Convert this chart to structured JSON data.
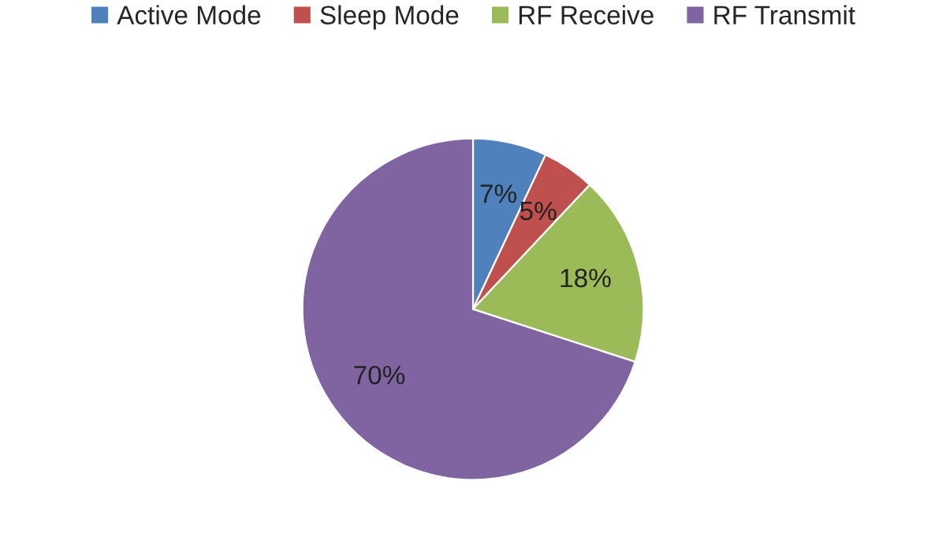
{
  "chart_data": {
    "type": "pie",
    "categories": [
      "Active Mode",
      "Sleep Mode",
      "RF Receive",
      "RF Transmit"
    ],
    "values": [
      7,
      5,
      18,
      70
    ],
    "colors": [
      "#4f81bd",
      "#c0504d",
      "#9bbb59",
      "#8064a2"
    ],
    "value_labels": [
      "7%",
      "5%",
      "18%",
      "70%"
    ],
    "legend": "top"
  }
}
